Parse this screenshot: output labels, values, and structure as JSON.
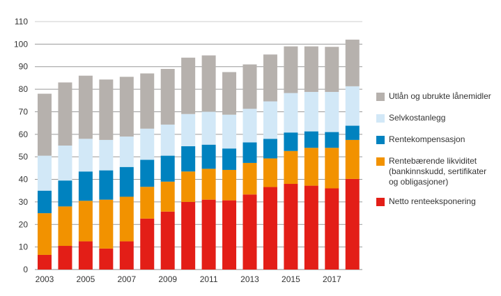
{
  "chart_data": {
    "type": "bar",
    "stacked": true,
    "categories": [
      "2003",
      "2004",
      "2005",
      "2006",
      "2007",
      "2008",
      "2009",
      "2010",
      "2011",
      "2012",
      "2013",
      "2014",
      "2015",
      "2016",
      "2017",
      "2018"
    ],
    "x_tick_labels": [
      "2003",
      "2005",
      "2007",
      "2009",
      "2011",
      "2013",
      "2015",
      "2017"
    ],
    "ylim": [
      0,
      110
    ],
    "y_ticks": [
      "0",
      "10",
      "20",
      "30",
      "40",
      "50",
      "60",
      "70",
      "80",
      "90",
      "100",
      "110"
    ],
    "grid": true,
    "legend_position": "right",
    "series": [
      {
        "name": "Netto renteeksponering",
        "color": "#e31e17",
        "values": [
          6.5,
          10.5,
          12.5,
          9.3,
          12.5,
          22.6,
          25.7,
          30,
          31,
          30.7,
          33.3,
          36.6,
          38,
          37.2,
          36,
          40.2
        ]
      },
      {
        "name": "Rentebærende likviditet (bankinnskudd, sertifikater og obligasjoner)",
        "color": "#f29200",
        "values": [
          18.5,
          17.5,
          18,
          21.7,
          19.8,
          14.1,
          13.3,
          13.5,
          13.7,
          13.5,
          14,
          12.7,
          14.6,
          16.8,
          18,
          17.3
        ]
      },
      {
        "name": "Rentekompensasjon",
        "color": "#0082bf",
        "values": [
          10,
          11.5,
          13,
          13,
          13.2,
          12,
          11.5,
          11.2,
          10.7,
          9.5,
          9.1,
          8.7,
          8.2,
          7.3,
          7,
          6.3
        ]
      },
      {
        "name": "Selvkostanlegg",
        "color": "#d2e8f7",
        "values": [
          15.5,
          15.5,
          14.5,
          13.5,
          13.5,
          13.8,
          13.8,
          14.3,
          14.6,
          15,
          14.9,
          16.6,
          17.5,
          17.5,
          17.8,
          17.5
        ]
      },
      {
        "name": "Utlån og ubrukte lånemidler",
        "color": "#b6b1ad",
        "values": [
          27.5,
          28,
          28,
          26.8,
          26.5,
          24.5,
          24.7,
          25,
          25,
          18.9,
          19.7,
          20.8,
          20.7,
          20.2,
          20,
          20.7
        ]
      }
    ]
  }
}
